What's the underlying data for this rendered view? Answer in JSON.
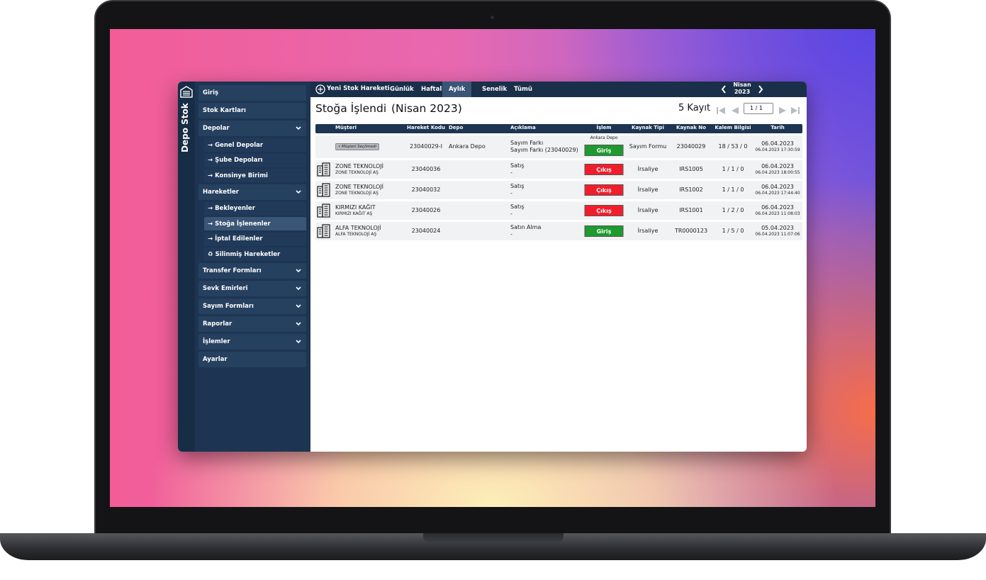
{
  "app_title": "Depo Stok",
  "sidebar": [
    {
      "label": "Giriş"
    },
    {
      "label": "Stok Kartları"
    },
    {
      "label": "Depolar",
      "expandable": true,
      "children": [
        {
          "label": "→ Genel Depolar"
        },
        {
          "label": "→ Şube Depoları"
        },
        {
          "label": "→ Konsinye Birimi"
        }
      ]
    },
    {
      "label": "Hareketler",
      "expandable": true,
      "children": [
        {
          "label": "→ Bekleyenler"
        },
        {
          "label": "→ Stoğa İşlenenler",
          "active": true
        },
        {
          "label": "→ İptal Edilenler"
        },
        {
          "label": "♻ Silinmiş Hareketler"
        }
      ]
    },
    {
      "label": "Transfer Formları",
      "expandable": true
    },
    {
      "label": "Sevk Emirleri",
      "expandable": true
    },
    {
      "label": "Sayım Formları",
      "expandable": true
    },
    {
      "label": "Raporlar",
      "expandable": true
    },
    {
      "label": "İşlemler",
      "expandable": true
    },
    {
      "label": "Ayarlar"
    }
  ],
  "toolbar": {
    "new_button": "Yeni Stok Hareketi",
    "tabs": [
      "Günlük",
      "Haftalık",
      "Aylık",
      "Senelik",
      "Tümü"
    ],
    "active_tab": 2,
    "period_month": "Nisan",
    "period_year": "2023"
  },
  "header": {
    "title": "Stoğa İşlendi",
    "period": "(Nisan 2023)",
    "record_count": "5 Kayıt",
    "page_select": "1 / 1"
  },
  "table": {
    "columns": [
      "Müşteri",
      "Hareket Kodu",
      "Depo",
      "Açıklama",
      "İşlem",
      "Kaynak Tipi",
      "Kaynak No",
      "Kalem Bilgisi",
      "Tarih"
    ],
    "rows": [
      {
        "customer_badge": "• Müşteri Seçilmedi",
        "code": "23040029-I",
        "depot": "Ankara Depo",
        "description": [
          "Sayım Farkı",
          "Sayım Farkı (23040029)"
        ],
        "action_note": "Ankara Depo",
        "action": "Giriş",
        "source_type": "Sayım Formu",
        "source_no": "23040029",
        "item_info": "18 / 53 / 0",
        "date": "06.04.2023",
        "datetime": "06.04.2023 17:30:59"
      },
      {
        "customer": "ZONE TEKNOLOJİ",
        "customer_sub": "ZONE TEKNOLOJİ AŞ",
        "code": "23040036",
        "description": [
          "Satış",
          "-"
        ],
        "action": "Çıkış",
        "source_type": "İrsaliye",
        "source_no": "IRS1005",
        "item_info": "1 / 1 / 0",
        "date": "06.04.2023",
        "datetime": "06.04.2023 18:00:55"
      },
      {
        "customer": "ZONE TEKNOLOJİ",
        "customer_sub": "ZONE TEKNOLOJİ AŞ",
        "code": "23040032",
        "description": [
          "Satış",
          "-"
        ],
        "action": "Çıkış",
        "source_type": "İrsaliye",
        "source_no": "IRS1002",
        "item_info": "1 / 1 / 0",
        "date": "06.04.2023",
        "datetime": "06.04.2023 17:44:40"
      },
      {
        "customer": "KIRMIZI KAĞIT",
        "customer_sub": "KIRMIZI KAĞIT AŞ",
        "code": "23040026",
        "description": [
          "Satış",
          "-"
        ],
        "action": "Çıkış",
        "source_type": "İrsaliye",
        "source_no": "IRS1001",
        "item_info": "1 / 2 / 0",
        "date": "06.04.2023",
        "datetime": "06.04.2023 11:08:03"
      },
      {
        "customer": "ALFA TEKNOLOJİ",
        "customer_sub": "ALFA TEKNOLOJİ AŞ",
        "code": "23040024",
        "description": [
          "Satın Alma",
          "-"
        ],
        "action": "Giriş",
        "source_type": "İrsaliye",
        "source_no": "TR0000123",
        "item_info": "1 / 5 / 0",
        "date": "05.04.2023",
        "datetime": "06.04.2023 11:07:06"
      }
    ]
  }
}
